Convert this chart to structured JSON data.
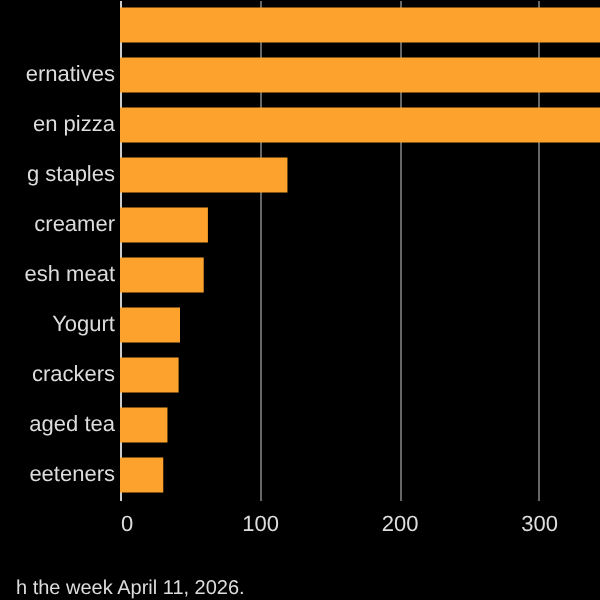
{
  "chart_data": {
    "type": "bar",
    "orientation": "horizontal",
    "categories": [
      null,
      "ernatives",
      "en pizza",
      "g staples",
      "creamer",
      "esh meat",
      "Yogurt",
      "crackers",
      "aged tea",
      "eeteners"
    ],
    "values": [
      344,
      344,
      344,
      120,
      63,
      60,
      43,
      42,
      34,
      31
    ],
    "color": "#fda32d",
    "xlim": [
      0,
      344
    ],
    "xticks": [
      0,
      100,
      200,
      300
    ],
    "grid": "x",
    "annotations": [
      "h the week April 11, 2026."
    ]
  }
}
